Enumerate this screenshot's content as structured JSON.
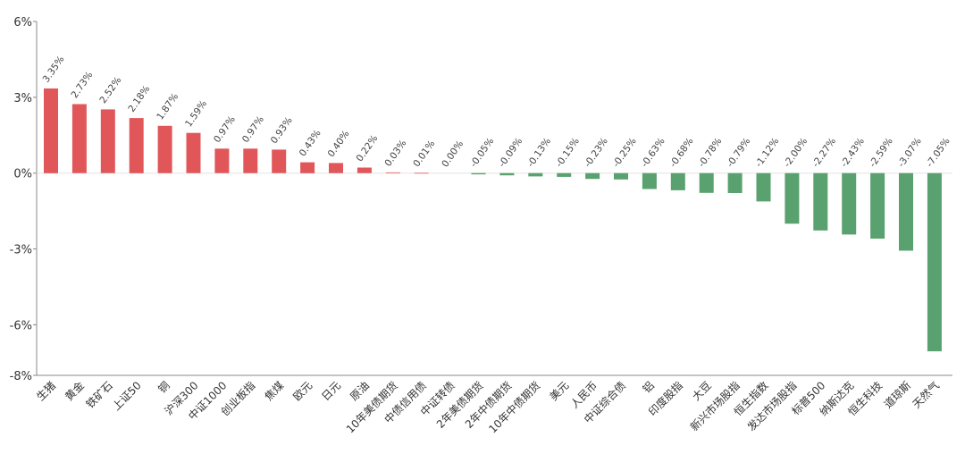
{
  "chart_data": {
    "type": "bar",
    "title": "",
    "xlabel": "",
    "ylabel": "",
    "ylim": [
      -8,
      6
    ],
    "yticks": [
      {
        "value": 6,
        "label": "6%"
      },
      {
        "value": 3,
        "label": "3%"
      },
      {
        "value": 0,
        "label": "0%"
      },
      {
        "value": -3,
        "label": "-3%"
      },
      {
        "value": -6,
        "label": "-6%"
      },
      {
        "value": -8,
        "label": "-8%"
      }
    ],
    "categories": [
      "生猪",
      "黄金",
      "铁矿石",
      "上证50",
      "铜",
      "沪深300",
      "中证1000",
      "创业板指",
      "焦煤",
      "欧元",
      "日元",
      "原油",
      "10年美债期货",
      "中债信用债",
      "中证转债",
      "2年美债期货",
      "2年中债期货",
      "10年中债期货",
      "美元",
      "人民币",
      "中证综合债",
      "铝",
      "印度股指",
      "大豆",
      "新兴市场股指",
      "恒生指数",
      "发达市场股指",
      "标普500",
      "纳斯达克",
      "恒生科技",
      "道琼斯",
      "天然气"
    ],
    "values": [
      3.35,
      2.73,
      2.52,
      2.18,
      1.87,
      1.59,
      0.97,
      0.97,
      0.93,
      0.43,
      0.4,
      0.22,
      0.03,
      0.01,
      0.0,
      -0.05,
      -0.09,
      -0.13,
      -0.15,
      -0.23,
      -0.25,
      -0.63,
      -0.68,
      -0.78,
      -0.79,
      -1.12,
      -2.0,
      -2.27,
      -2.43,
      -2.59,
      -3.07,
      -7.05
    ],
    "value_labels": [
      "3.35%",
      "2.73%",
      "2.52%",
      "2.18%",
      "1.87%",
      "1.59%",
      "0.97%",
      "0.97%",
      "0.93%",
      "0.43%",
      "0.40%",
      "0.22%",
      "0.03%",
      "0.01%",
      "0.00%",
      "-0.05%",
      "-0.09%",
      "-0.13%",
      "-0.15%",
      "-0.23%",
      "-0.25%",
      "-0.63%",
      "-0.68%",
      "-0.78%",
      "-0.79%",
      "-1.12%",
      "-2.00%",
      "-2.27%",
      "-2.43%",
      "-2.59%",
      "-3.07%",
      "-7.05%"
    ],
    "colors": {
      "positive": "#e15759",
      "negative": "#59a16e",
      "axis": "#888888"
    }
  }
}
